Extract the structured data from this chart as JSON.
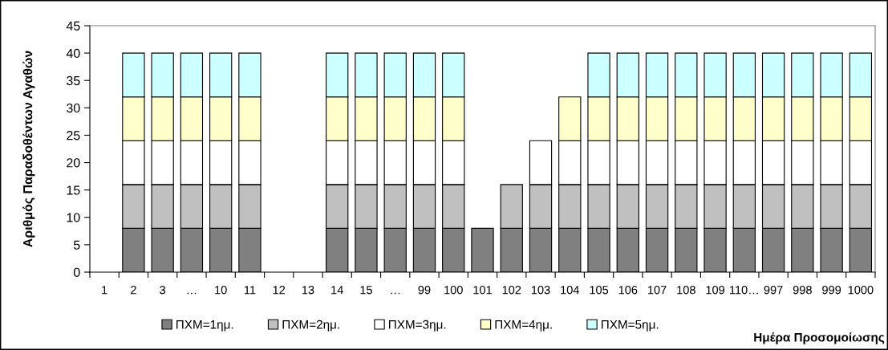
{
  "chart_data": {
    "type": "bar",
    "stacked": true,
    "xlabel": "Ημέρα Προσομοίωσης",
    "ylabel": "Αριθμός Παραδοθέντων Αγαθών",
    "categories": [
      "1",
      "2",
      "3",
      "…",
      "10",
      "11",
      "12",
      "13",
      "14",
      "15",
      "…",
      "99",
      "100",
      "101",
      "102",
      "103",
      "104",
      "105",
      "106",
      "107",
      "108",
      "109",
      "110…",
      "997",
      "998",
      "999",
      "1000"
    ],
    "series": [
      {
        "name": "ΠΧΜ=1ημ.",
        "color": "#808080",
        "values": [
          null,
          8,
          8,
          8,
          8,
          8,
          null,
          null,
          8,
          8,
          8,
          8,
          8,
          8,
          8,
          8,
          8,
          8,
          8,
          8,
          8,
          8,
          8,
          8,
          8,
          8,
          8
        ]
      },
      {
        "name": "ΠΧΜ=2ημ.",
        "color": "#c0c0c0",
        "values": [
          null,
          8,
          8,
          8,
          8,
          8,
          null,
          null,
          8,
          8,
          8,
          8,
          8,
          null,
          8,
          8,
          8,
          8,
          8,
          8,
          8,
          8,
          8,
          8,
          8,
          8,
          8
        ]
      },
      {
        "name": "ΠΧΜ=3ημ.",
        "color": "#ffffff",
        "values": [
          null,
          8,
          8,
          8,
          8,
          8,
          null,
          null,
          8,
          8,
          8,
          8,
          8,
          null,
          null,
          8,
          8,
          8,
          8,
          8,
          8,
          8,
          8,
          8,
          8,
          8,
          8
        ]
      },
      {
        "name": "ΠΧΜ=4ημ.",
        "color": "#ffffcc",
        "values": [
          null,
          8,
          8,
          8,
          8,
          8,
          null,
          null,
          8,
          8,
          8,
          8,
          8,
          null,
          null,
          null,
          8,
          8,
          8,
          8,
          8,
          8,
          8,
          8,
          8,
          8,
          8
        ]
      },
      {
        "name": "ΠΧΜ=5ημ.",
        "color": "#ccffff",
        "values": [
          null,
          8,
          8,
          8,
          8,
          8,
          null,
          null,
          8,
          8,
          8,
          8,
          8,
          null,
          null,
          null,
          null,
          8,
          8,
          8,
          8,
          8,
          8,
          8,
          8,
          8,
          8
        ]
      }
    ],
    "ylim": [
      0,
      45
    ],
    "yticks": [
      0,
      5,
      10,
      15,
      20,
      25,
      30,
      35,
      40,
      45
    ],
    "grid": false,
    "legend": "bottom"
  }
}
